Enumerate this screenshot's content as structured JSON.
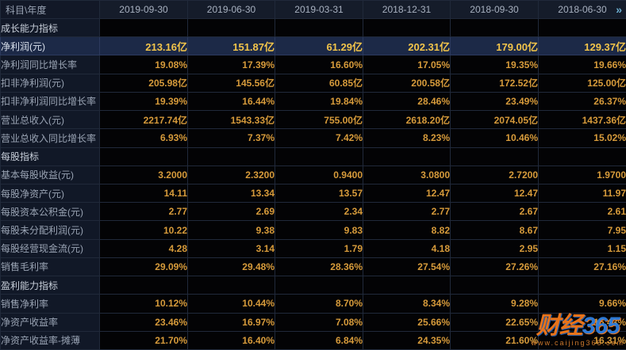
{
  "table": {
    "corner_label": "科目\\年度",
    "columns": [
      "2019-09-30",
      "2019-06-30",
      "2019-03-31",
      "2018-12-31",
      "2018-09-30",
      "2018-06-30"
    ],
    "more_icon": "»",
    "rows": [
      {
        "type": "section",
        "label": "成长能力指标",
        "values": [
          "",
          "",
          "",
          "",
          "",
          ""
        ]
      },
      {
        "type": "data",
        "highlight": true,
        "label": "净利润(元)",
        "values": [
          "213.16亿",
          "151.87亿",
          "61.29亿",
          "202.31亿",
          "179.00亿",
          "129.37亿"
        ]
      },
      {
        "type": "data",
        "label": "净利润同比增长率",
        "values": [
          "19.08%",
          "17.39%",
          "16.60%",
          "17.05%",
          "19.35%",
          "19.66%"
        ]
      },
      {
        "type": "data",
        "label": "扣非净利润(元)",
        "values": [
          "205.98亿",
          "145.56亿",
          "60.85亿",
          "200.58亿",
          "172.52亿",
          "125.00亿"
        ]
      },
      {
        "type": "data",
        "label": "扣非净利润同比增长率",
        "values": [
          "19.39%",
          "16.44%",
          "19.84%",
          "28.46%",
          "23.49%",
          "26.37%"
        ]
      },
      {
        "type": "data",
        "label": "营业总收入(元)",
        "values": [
          "2217.74亿",
          "1543.33亿",
          "755.00亿",
          "2618.20亿",
          "2074.05亿",
          "1437.36亿"
        ]
      },
      {
        "type": "data",
        "label": "营业总收入同比增长率",
        "values": [
          "6.93%",
          "7.37%",
          "7.42%",
          "8.23%",
          "10.46%",
          "15.02%"
        ]
      },
      {
        "type": "section",
        "label": "每股指标",
        "values": [
          "",
          "",
          "",
          "",
          "",
          ""
        ]
      },
      {
        "type": "data",
        "label": "基本每股收益(元)",
        "values": [
          "3.2000",
          "2.3200",
          "0.9400",
          "3.0800",
          "2.7200",
          "1.9700"
        ]
      },
      {
        "type": "data",
        "label": "每股净资产(元)",
        "values": [
          "14.11",
          "13.34",
          "13.57",
          "12.47",
          "12.47",
          "11.97"
        ]
      },
      {
        "type": "data",
        "label": "每股资本公积金(元)",
        "values": [
          "2.77",
          "2.69",
          "2.34",
          "2.77",
          "2.67",
          "2.61"
        ]
      },
      {
        "type": "data",
        "label": "每股未分配利润(元)",
        "values": [
          "10.22",
          "9.38",
          "9.83",
          "8.82",
          "8.67",
          "7.95"
        ]
      },
      {
        "type": "data",
        "label": "每股经营现金流(元)",
        "values": [
          "4.28",
          "3.14",
          "1.79",
          "4.18",
          "2.95",
          "1.15"
        ]
      },
      {
        "type": "data",
        "label": "销售毛利率",
        "values": [
          "29.09%",
          "29.48%",
          "28.36%",
          "27.54%",
          "27.26%",
          "27.16%"
        ]
      },
      {
        "type": "section",
        "label": "盈利能力指标",
        "values": [
          "",
          "",
          "",
          "",
          "",
          ""
        ]
      },
      {
        "type": "data",
        "label": "销售净利率",
        "values": [
          "10.12%",
          "10.44%",
          "8.70%",
          "8.34%",
          "9.28%",
          "9.66%"
        ]
      },
      {
        "type": "data",
        "label": "净资产收益率",
        "values": [
          "23.46%",
          "16.97%",
          "7.08%",
          "25.66%",
          "22.65%",
          "16.43%"
        ]
      },
      {
        "type": "data",
        "label": "净资产收益率-摊薄",
        "values": [
          "21.70%",
          "16.40%",
          "6.84%",
          "24.35%",
          "21.60%",
          "16.31%"
        ]
      }
    ]
  },
  "watermark": {
    "brand_prefix": "财经",
    "brand_suffix": "365",
    "url": "www.caijing365.com"
  },
  "colors": {
    "highlight_row_bg": "#1c2947",
    "value_text": "#d79b3b",
    "highlight_value_text": "#f2c44a",
    "header_bg": "#151c2a",
    "label_col_bg": "#111827",
    "data_cell_bg": "#030305",
    "more_icon": "#6fb2d4"
  }
}
